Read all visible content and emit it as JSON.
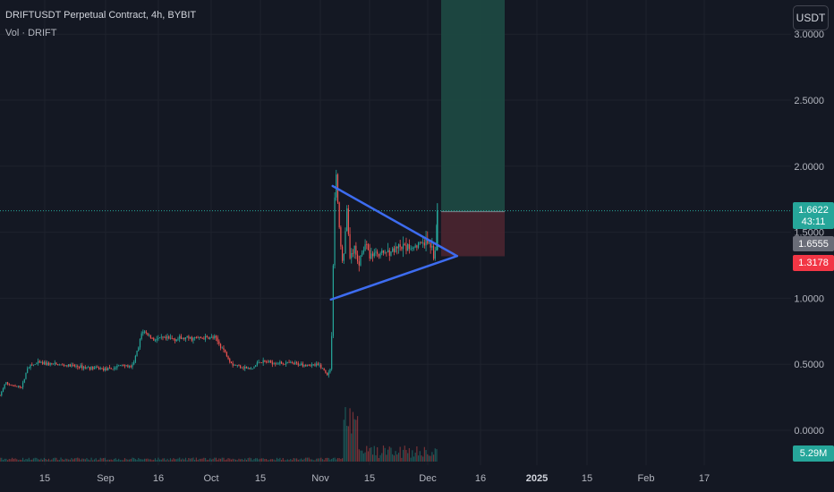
{
  "header": {
    "title": "DRIFTUSDT Perpetual Contract, 4h, BYBIT",
    "volume_label": "Vol · DRIFT",
    "currency_button": "USDT"
  },
  "colors": {
    "background": "#141823",
    "up": "#26a69a",
    "down": "#ef5350",
    "triangle": "#3d6cf0",
    "target_zone": "#1d4a44",
    "stop_zone": "#4a2530",
    "grid": "#1e222d",
    "axis_text": "#b2b5be"
  },
  "price_axis": {
    "ticks": [
      "3.0000",
      "2.5000",
      "2.0000",
      "1.5000",
      "1.0000",
      "0.5000",
      "0.0000"
    ],
    "labels": [
      {
        "name": "last-price",
        "value": 1.6622,
        "text": "1.6622",
        "sub": "43:11",
        "color": "#26a69a"
      },
      {
        "name": "entry-price",
        "value": 1.6555,
        "text": "1.6555",
        "color": "#6a6d78"
      },
      {
        "name": "stop-price",
        "value": 1.3178,
        "text": "1.3178",
        "color": "#f23645"
      },
      {
        "name": "volume-value",
        "text": "5.29M",
        "color": "#26a69a"
      }
    ]
  },
  "time_axis": {
    "ticks": [
      "15",
      "Sep",
      "16",
      "Oct",
      "15",
      "Nov",
      "15",
      "Dec",
      "16",
      "2025",
      "15",
      "Feb",
      "17"
    ]
  },
  "chart_data": {
    "type": "candlestick",
    "symbol": "DRIFTUSDT",
    "interval": "4h",
    "exchange": "BYBIT",
    "ylim": [
      0,
      3.0
    ],
    "x": [
      "15",
      "Sep",
      "16",
      "Oct",
      "15",
      "Nov",
      "15",
      "Dec",
      "16",
      "2025",
      "15",
      "Feb",
      "17"
    ],
    "price_path": [
      {
        "x": "Aug 4",
        "close": 0.33
      },
      {
        "x": "Aug 7",
        "close": 0.25
      },
      {
        "x": "Aug 10",
        "close": 0.36
      },
      {
        "x": "Aug 15",
        "close": 0.33
      },
      {
        "x": "Aug 19",
        "close": 0.33
      },
      {
        "x": "Aug 22",
        "close": 0.48
      },
      {
        "x": "Aug 28",
        "close": 0.51
      },
      {
        "x": "Sep 4",
        "close": 0.46
      },
      {
        "x": "Sep 11",
        "close": 0.5
      },
      {
        "x": "Sep 16",
        "close": 0.47
      },
      {
        "x": "Sep 20",
        "close": 0.63
      },
      {
        "x": "Sep 22",
        "close": 0.76
      },
      {
        "x": "Sep 28",
        "close": 0.69
      },
      {
        "x": "Oct 3",
        "close": 0.7
      },
      {
        "x": "Oct 8",
        "close": 0.61
      },
      {
        "x": "Oct 13",
        "close": 0.5
      },
      {
        "x": "Oct 19",
        "close": 0.48
      },
      {
        "x": "Oct 24",
        "close": 0.46
      },
      {
        "x": "Oct 28",
        "close": 0.52
      },
      {
        "x": "Nov 2",
        "close": 0.49
      },
      {
        "x": "Nov 6",
        "close": 0.42
      },
      {
        "x": "Nov 8",
        "close": 0.47
      },
      {
        "x": "Nov 9",
        "close": 1.05
      },
      {
        "x": "Nov 10",
        "close": 1.72
      },
      {
        "x": "Nov 11",
        "close": 1.95
      },
      {
        "x": "Nov 13",
        "close": 1.45
      },
      {
        "x": "Nov 15",
        "close": 1.25
      },
      {
        "x": "Nov 17",
        "close": 1.68
      },
      {
        "x": "Nov 19",
        "close": 1.28
      },
      {
        "x": "Nov 21",
        "close": 1.38
      },
      {
        "x": "Nov 24",
        "close": 1.27
      },
      {
        "x": "Nov 27",
        "close": 1.42
      },
      {
        "x": "Nov 30",
        "close": 1.33
      },
      {
        "x": "Dec 3",
        "close": 1.42
      },
      {
        "x": "Dec 5",
        "close": 1.3
      },
      {
        "x": "Dec 6",
        "close": 1.38
      },
      {
        "x": "Dec 7",
        "close": 1.6622
      }
    ],
    "volume_last": "5.29M",
    "triangle_pattern": {
      "upper_line": [
        {
          "x": "Nov 10",
          "y": 1.85
        },
        {
          "x": "Dec 8",
          "y": 1.32
        }
      ],
      "lower_line": [
        {
          "x": "Nov 9",
          "y": 0.99
        },
        {
          "x": "Dec 8",
          "y": 1.32
        }
      ]
    },
    "position": {
      "entry": 1.6555,
      "stop": 1.3178,
      "target_above": 3.0,
      "last_price": 1.6622,
      "countdown": "43:11"
    }
  }
}
